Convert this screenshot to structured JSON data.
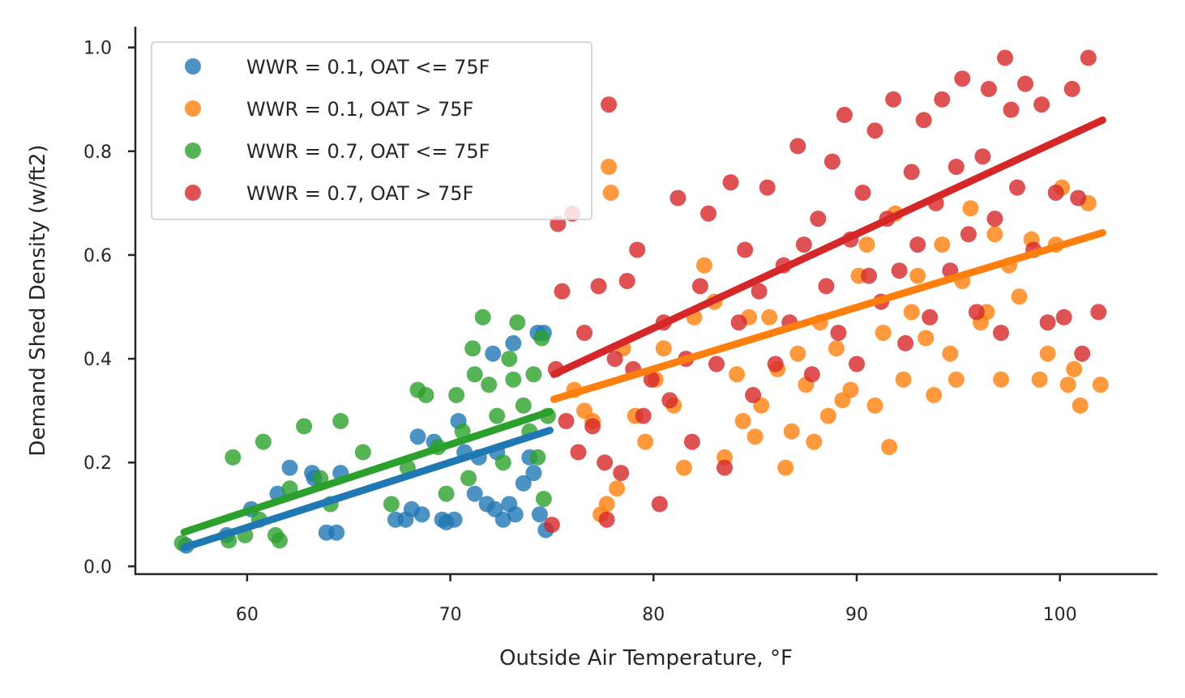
{
  "chart_data": {
    "type": "scatter",
    "title": "",
    "xlabel": "Outside Air Temperature, °F",
    "ylabel": "Demand Shed Density (w/ft2)",
    "xlim": [
      54.5,
      104.8
    ],
    "ylim": [
      -0.015,
      1.04
    ],
    "xticks": [
      60,
      70,
      80,
      90,
      100
    ],
    "yticks": [
      0.0,
      0.2,
      0.4,
      0.6,
      0.8,
      1.0
    ],
    "xtick_labels": [
      "60",
      "70",
      "80",
      "90",
      "100"
    ],
    "ytick_labels": [
      "0.0",
      "0.2",
      "0.4",
      "0.6",
      "0.8",
      "1.0"
    ],
    "grid": false,
    "legend_position": "top-left",
    "series": [
      {
        "name": "WWR = 0.1, OAT <= 75F",
        "color": "#1f77b4",
        "points": [
          [
            57.0,
            0.04
          ],
          [
            59.0,
            0.06
          ],
          [
            60.2,
            0.11
          ],
          [
            61.5,
            0.14
          ],
          [
            62.1,
            0.19
          ],
          [
            63.2,
            0.18
          ],
          [
            63.3,
            0.17
          ],
          [
            63.9,
            0.065
          ],
          [
            64.4,
            0.065
          ],
          [
            64.6,
            0.18
          ],
          [
            67.3,
            0.09
          ],
          [
            67.8,
            0.09
          ],
          [
            68.1,
            0.11
          ],
          [
            68.4,
            0.25
          ],
          [
            68.6,
            0.1
          ],
          [
            69.2,
            0.24
          ],
          [
            69.6,
            0.09
          ],
          [
            69.8,
            0.085
          ],
          [
            70.2,
            0.09
          ],
          [
            70.4,
            0.28
          ],
          [
            70.7,
            0.22
          ],
          [
            71.2,
            0.14
          ],
          [
            71.4,
            0.21
          ],
          [
            71.8,
            0.12
          ],
          [
            72.1,
            0.41
          ],
          [
            72.2,
            0.11
          ],
          [
            72.3,
            0.22
          ],
          [
            72.6,
            0.09
          ],
          [
            72.9,
            0.12
          ],
          [
            73.1,
            0.43
          ],
          [
            73.2,
            0.1
          ],
          [
            73.6,
            0.16
          ],
          [
            73.9,
            0.21
          ],
          [
            74.1,
            0.18
          ],
          [
            74.3,
            0.45
          ],
          [
            74.4,
            0.1
          ],
          [
            74.6,
            0.45
          ],
          [
            74.7,
            0.07
          ]
        ],
        "trend": [
          [
            56.9,
            0.036
          ],
          [
            74.9,
            0.262
          ]
        ]
      },
      {
        "name": "WWR = 0.1, OAT > 75F",
        "color": "#ff7f0e",
        "points": [
          [
            76.1,
            0.34
          ],
          [
            76.6,
            0.3
          ],
          [
            77.0,
            0.28
          ],
          [
            77.4,
            0.1
          ],
          [
            77.7,
            0.12
          ],
          [
            77.8,
            0.77
          ],
          [
            77.9,
            0.72
          ],
          [
            78.2,
            0.15
          ],
          [
            78.5,
            0.42
          ],
          [
            79.1,
            0.29
          ],
          [
            79.6,
            0.24
          ],
          [
            80.1,
            0.36
          ],
          [
            80.5,
            0.42
          ],
          [
            81.0,
            0.31
          ],
          [
            81.5,
            0.19
          ],
          [
            82.0,
            0.48
          ],
          [
            82.5,
            0.58
          ],
          [
            83.0,
            0.51
          ],
          [
            83.5,
            0.21
          ],
          [
            84.1,
            0.37
          ],
          [
            84.4,
            0.28
          ],
          [
            84.7,
            0.48
          ],
          [
            85.0,
            0.25
          ],
          [
            85.3,
            0.31
          ],
          [
            85.7,
            0.48
          ],
          [
            86.1,
            0.38
          ],
          [
            86.5,
            0.19
          ],
          [
            86.8,
            0.26
          ],
          [
            87.1,
            0.41
          ],
          [
            87.5,
            0.35
          ],
          [
            87.9,
            0.24
          ],
          [
            88.2,
            0.47
          ],
          [
            88.6,
            0.29
          ],
          [
            89.0,
            0.42
          ],
          [
            89.3,
            0.32
          ],
          [
            89.7,
            0.34
          ],
          [
            90.1,
            0.56
          ],
          [
            90.5,
            0.62
          ],
          [
            90.9,
            0.31
          ],
          [
            91.3,
            0.45
          ],
          [
            91.6,
            0.23
          ],
          [
            91.9,
            0.68
          ],
          [
            92.3,
            0.36
          ],
          [
            92.7,
            0.49
          ],
          [
            93.0,
            0.56
          ],
          [
            93.4,
            0.44
          ],
          [
            93.8,
            0.33
          ],
          [
            94.2,
            0.62
          ],
          [
            94.6,
            0.41
          ],
          [
            94.9,
            0.36
          ],
          [
            95.2,
            0.55
          ],
          [
            95.6,
            0.69
          ],
          [
            96.1,
            0.47
          ],
          [
            96.4,
            0.49
          ],
          [
            96.8,
            0.64
          ],
          [
            97.1,
            0.36
          ],
          [
            97.5,
            0.58
          ],
          [
            98.0,
            0.52
          ],
          [
            98.6,
            0.63
          ],
          [
            99.0,
            0.36
          ],
          [
            99.4,
            0.41
          ],
          [
            99.8,
            0.62
          ],
          [
            100.1,
            0.73
          ],
          [
            100.4,
            0.35
          ],
          [
            100.7,
            0.38
          ],
          [
            101.0,
            0.31
          ],
          [
            101.4,
            0.7
          ],
          [
            102.0,
            0.35
          ]
        ],
        "trend": [
          [
            75.1,
            0.322
          ],
          [
            102.1,
            0.643
          ]
        ]
      },
      {
        "name": "WWR = 0.7, OAT <= 75F",
        "color": "#2ca02c",
        "points": [
          [
            56.8,
            0.045
          ],
          [
            59.1,
            0.05
          ],
          [
            59.3,
            0.21
          ],
          [
            59.9,
            0.06
          ],
          [
            60.6,
            0.09
          ],
          [
            60.8,
            0.24
          ],
          [
            61.4,
            0.06
          ],
          [
            61.6,
            0.05
          ],
          [
            62.1,
            0.15
          ],
          [
            62.8,
            0.27
          ],
          [
            63.6,
            0.17
          ],
          [
            64.1,
            0.12
          ],
          [
            64.6,
            0.28
          ],
          [
            65.7,
            0.22
          ],
          [
            67.1,
            0.12
          ],
          [
            67.9,
            0.19
          ],
          [
            68.4,
            0.34
          ],
          [
            68.8,
            0.33
          ],
          [
            69.4,
            0.23
          ],
          [
            69.8,
            0.14
          ],
          [
            70.3,
            0.33
          ],
          [
            70.6,
            0.26
          ],
          [
            70.9,
            0.17
          ],
          [
            71.1,
            0.42
          ],
          [
            71.2,
            0.37
          ],
          [
            71.6,
            0.48
          ],
          [
            71.9,
            0.35
          ],
          [
            72.3,
            0.29
          ],
          [
            72.6,
            0.2
          ],
          [
            72.9,
            0.4
          ],
          [
            73.1,
            0.36
          ],
          [
            73.3,
            0.47
          ],
          [
            73.6,
            0.31
          ],
          [
            73.9,
            0.26
          ],
          [
            74.1,
            0.37
          ],
          [
            74.3,
            0.21
          ],
          [
            74.5,
            0.44
          ],
          [
            74.6,
            0.13
          ],
          [
            74.8,
            0.29
          ]
        ],
        "trend": [
          [
            56.9,
            0.066
          ],
          [
            74.9,
            0.298
          ]
        ]
      },
      {
        "name": "WWR = 0.7, OAT > 75F",
        "color": "#d62728",
        "points": [
          [
            75.0,
            0.08
          ],
          [
            75.2,
            0.38
          ],
          [
            75.3,
            0.66
          ],
          [
            75.5,
            0.53
          ],
          [
            75.7,
            0.28
          ],
          [
            76.0,
            0.68
          ],
          [
            76.3,
            0.22
          ],
          [
            76.6,
            0.45
          ],
          [
            77.0,
            0.27
          ],
          [
            77.3,
            0.54
          ],
          [
            77.6,
            0.2
          ],
          [
            77.7,
            0.09
          ],
          [
            77.8,
            0.89
          ],
          [
            78.1,
            0.4
          ],
          [
            78.4,
            0.18
          ],
          [
            78.7,
            0.55
          ],
          [
            79.0,
            0.38
          ],
          [
            79.2,
            0.61
          ],
          [
            79.5,
            0.29
          ],
          [
            79.9,
            0.36
          ],
          [
            80.3,
            0.12
          ],
          [
            80.5,
            0.47
          ],
          [
            80.8,
            0.32
          ],
          [
            81.2,
            0.71
          ],
          [
            81.6,
            0.4
          ],
          [
            81.9,
            0.24
          ],
          [
            82.3,
            0.54
          ],
          [
            82.7,
            0.68
          ],
          [
            83.1,
            0.39
          ],
          [
            83.5,
            0.19
          ],
          [
            83.8,
            0.74
          ],
          [
            84.2,
            0.47
          ],
          [
            84.5,
            0.61
          ],
          [
            84.9,
            0.33
          ],
          [
            85.2,
            0.53
          ],
          [
            85.6,
            0.73
          ],
          [
            86.0,
            0.39
          ],
          [
            86.4,
            0.58
          ],
          [
            86.7,
            0.47
          ],
          [
            87.1,
            0.81
          ],
          [
            87.4,
            0.62
          ],
          [
            87.8,
            0.37
          ],
          [
            88.1,
            0.67
          ],
          [
            88.5,
            0.54
          ],
          [
            88.8,
            0.78
          ],
          [
            89.1,
            0.45
          ],
          [
            89.4,
            0.87
          ],
          [
            89.7,
            0.63
          ],
          [
            90.0,
            0.39
          ],
          [
            90.3,
            0.72
          ],
          [
            90.6,
            0.56
          ],
          [
            90.9,
            0.84
          ],
          [
            91.2,
            0.51
          ],
          [
            91.5,
            0.67
          ],
          [
            91.8,
            0.9
          ],
          [
            92.1,
            0.57
          ],
          [
            92.4,
            0.43
          ],
          [
            92.7,
            0.76
          ],
          [
            93.0,
            0.62
          ],
          [
            93.3,
            0.86
          ],
          [
            93.6,
            0.48
          ],
          [
            93.9,
            0.7
          ],
          [
            94.2,
            0.9
          ],
          [
            94.6,
            0.57
          ],
          [
            94.9,
            0.77
          ],
          [
            95.2,
            0.94
          ],
          [
            95.5,
            0.64
          ],
          [
            95.9,
            0.49
          ],
          [
            96.2,
            0.79
          ],
          [
            96.5,
            0.92
          ],
          [
            96.8,
            0.67
          ],
          [
            97.1,
            0.45
          ],
          [
            97.3,
            0.98
          ],
          [
            97.6,
            0.88
          ],
          [
            97.9,
            0.73
          ],
          [
            98.3,
            0.93
          ],
          [
            98.7,
            0.61
          ],
          [
            99.1,
            0.89
          ],
          [
            99.4,
            0.47
          ],
          [
            99.8,
            0.72
          ],
          [
            100.2,
            0.48
          ],
          [
            100.6,
            0.92
          ],
          [
            100.9,
            0.71
          ],
          [
            101.1,
            0.41
          ],
          [
            101.4,
            0.98
          ],
          [
            101.9,
            0.49
          ]
        ],
        "trend": [
          [
            75.1,
            0.37
          ],
          [
            102.1,
            0.86
          ]
        ]
      }
    ]
  }
}
